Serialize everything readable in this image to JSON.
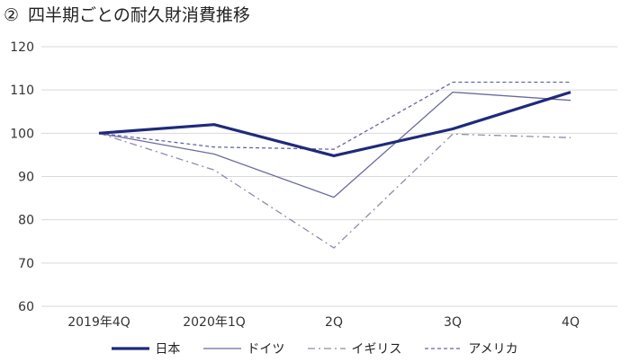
{
  "figure": {
    "number": "②",
    "title": "四半期ごとの耐久財消費推移"
  },
  "chart_data": {
    "type": "line",
    "categories": [
      "2019年4Q",
      "2020年1Q",
      "2Q",
      "3Q",
      "4Q"
    ],
    "ylim": [
      60,
      120
    ],
    "yticks": [
      60,
      70,
      80,
      90,
      100,
      110,
      120
    ],
    "grid": true,
    "legend_position": "bottom",
    "series": [
      {
        "name": "日本",
        "values": [
          100,
          102,
          94.8,
          101,
          109.5
        ],
        "color": "#1f2a7a",
        "style": "solid-thick"
      },
      {
        "name": "ドイツ",
        "values": [
          100,
          95.2,
          85.2,
          109.5,
          107.6
        ],
        "color": "#6b6b9e",
        "style": "solid-thin"
      },
      {
        "name": "イギリス",
        "values": [
          100,
          91.5,
          73.5,
          99.8,
          99
        ],
        "color": "#8c8cae",
        "style": "dash-dot"
      },
      {
        "name": "アメリカ",
        "values": [
          100,
          96.8,
          96.3,
          111.8,
          111.8
        ],
        "color": "#6565a8",
        "style": "dashed"
      }
    ]
  }
}
